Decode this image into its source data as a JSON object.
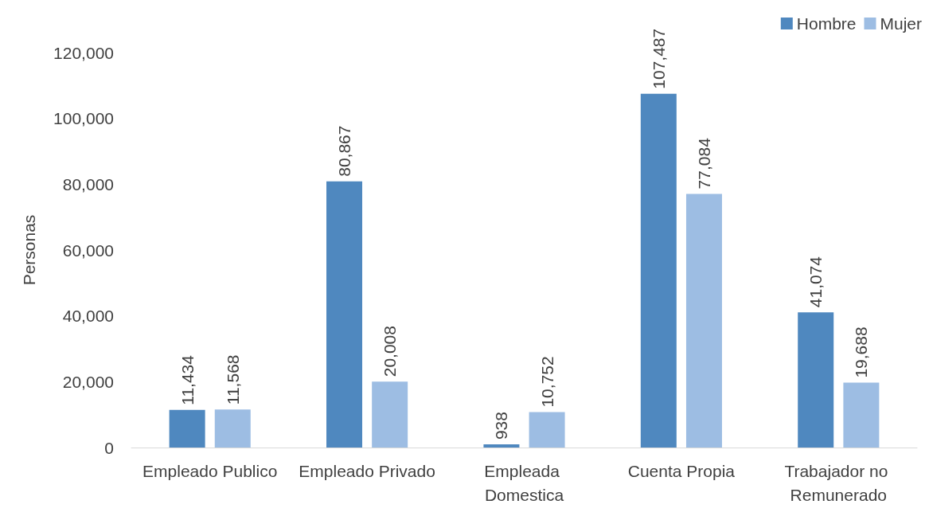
{
  "chart_data": {
    "type": "bar",
    "ylabel": "Personas",
    "categories": [
      "Empleado Publico",
      "Empleado Privado",
      "Empleada Domestica",
      "Cuenta Propia",
      "Trabajador no Remunerado"
    ],
    "series": [
      {
        "name": "Hombre",
        "color": "#4f88bf",
        "values": [
          11434,
          80867,
          938,
          107487,
          41074
        ],
        "value_labels": [
          "11,434",
          "80,867",
          "938",
          "107,487",
          "41,074"
        ]
      },
      {
        "name": "Mujer",
        "color": "#9dbde3",
        "values": [
          11568,
          20008,
          10752,
          77084,
          19688
        ],
        "value_labels": [
          "11,568",
          "20,008",
          "10,752",
          "77,084",
          "19,688"
        ]
      }
    ],
    "ylim": [
      0,
      120000
    ],
    "yticks": [
      {
        "value": 0,
        "label": "0"
      },
      {
        "value": 20000,
        "label": "20,000"
      },
      {
        "value": 40000,
        "label": "40,000"
      },
      {
        "value": 60000,
        "label": "60,000"
      },
      {
        "value": 80000,
        "label": "80,000"
      },
      {
        "value": 100000,
        "label": "100,000"
      },
      {
        "value": 120000,
        "label": "120,000"
      }
    ],
    "grid": false,
    "legend": "top right"
  }
}
